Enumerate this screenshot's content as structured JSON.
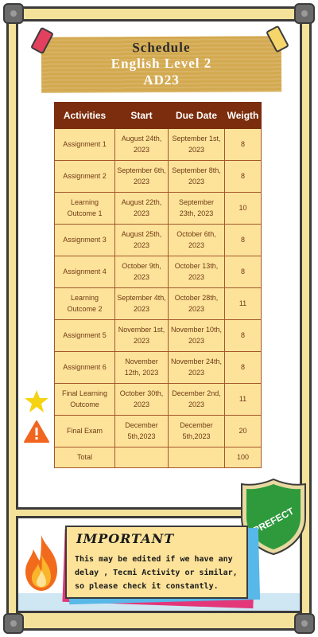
{
  "title": {
    "line1": "Schedule",
    "line2": "English Level 2",
    "line3": "AD23"
  },
  "table": {
    "headers": [
      "Activities",
      "Start",
      "Due Date",
      "Weigth"
    ],
    "rows": [
      [
        "Assignment 1",
        "August 24th, 2023",
        "September 1st, 2023",
        "8"
      ],
      [
        "Assignment 2",
        "September 6th, 2023",
        "September 8th, 2023",
        "8"
      ],
      [
        "Learning Outcome 1",
        "August 22th, 2023",
        "September 23th, 2023",
        "10"
      ],
      [
        "Assignment 3",
        "August 25th, 2023",
        "October 6th, 2023",
        "8"
      ],
      [
        "Assignment 4",
        "October 9th, 2023",
        "October 13th, 2023",
        "8"
      ],
      [
        "Learning Outcome 2",
        "September 4th, 2023",
        "October 28th, 2023",
        "11"
      ],
      [
        "Assignment 5",
        "November 1st, 2023",
        "November 10th, 2023",
        "8"
      ],
      [
        "Assignment 6",
        "November 12th, 2023",
        "November 24th, 2023",
        "8"
      ],
      [
        "Final Learning Outcome",
        "October 30th, 2023",
        "December 2nd, 2023",
        "11"
      ],
      [
        "Final Exam",
        "December 5th,2023",
        "December 5th,2023",
        "20"
      ]
    ],
    "total": {
      "label": "Total",
      "start": "",
      "due": "",
      "weight": "100"
    }
  },
  "badge": {
    "text": "PREFECT",
    "color": "#2e9a3c"
  },
  "note": {
    "title": "IMPORTANT",
    "body": "This may be edited if we have any delay , Tecmi Activity or similar, so please check it constantly."
  },
  "icons": {
    "star": "star-icon",
    "warning": "warning-icon",
    "flame": "flame-icon"
  },
  "colors": {
    "header": "#7b2d0d",
    "cell": "#fde39a",
    "frame": "#f4e19a",
    "title_card": "#d3a94f"
  }
}
